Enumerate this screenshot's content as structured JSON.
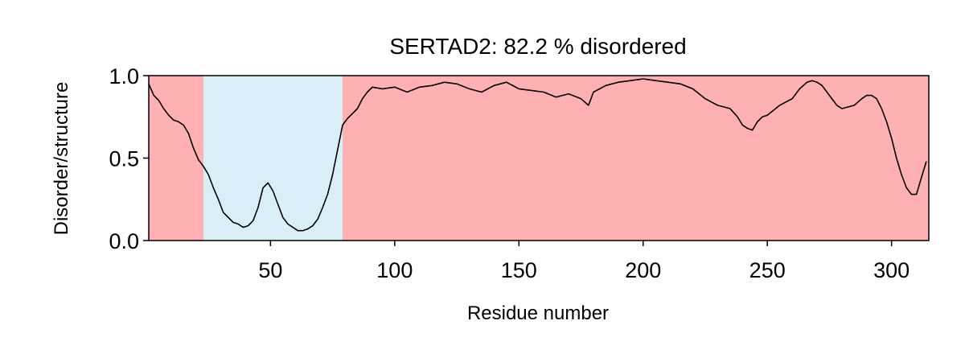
{
  "chart_data": {
    "type": "line",
    "title": "SERTAD2: 82.2 % disordered",
    "xlabel": "Residue number",
    "ylabel": "Disorder/structure",
    "xlim": [
      1,
      315
    ],
    "ylim": [
      0,
      1
    ],
    "xticks": [
      50,
      100,
      150,
      200,
      250,
      300
    ],
    "xtick_labels": [
      "50",
      "100",
      "150",
      "200",
      "250",
      "300"
    ],
    "yticks": [
      0,
      0.5,
      1
    ],
    "ytick_labels": [
      "0.0",
      "0.5",
      "1.0"
    ],
    "grid": false,
    "regions": [
      {
        "start": 1,
        "end": 23,
        "type": "disordered",
        "color": "#ffb0b2"
      },
      {
        "start": 23,
        "end": 79,
        "type": "structured",
        "color": "#d9eef7"
      },
      {
        "start": 79,
        "end": 315,
        "type": "disordered",
        "color": "#ffb0b2"
      }
    ],
    "series": [
      {
        "color": "#000000",
        "x": [
          1,
          3,
          5,
          7,
          9,
          11,
          13,
          15,
          17,
          19,
          21,
          23,
          25,
          27,
          29,
          31,
          33,
          35,
          37,
          39,
          41,
          43,
          45,
          47,
          49,
          51,
          53,
          55,
          57,
          59,
          61,
          63,
          65,
          67,
          69,
          71,
          73,
          75,
          77,
          79,
          81,
          83,
          85,
          87,
          89,
          91,
          95,
          100,
          105,
          110,
          115,
          120,
          125,
          130,
          135,
          140,
          145,
          150,
          155,
          160,
          165,
          170,
          175,
          178,
          180,
          185,
          190,
          195,
          200,
          205,
          210,
          215,
          220,
          225,
          230,
          235,
          238,
          240,
          242,
          244,
          246,
          248,
          250,
          255,
          260,
          263,
          266,
          268,
          270,
          272,
          275,
          278,
          280,
          285,
          288,
          290,
          292,
          294,
          296,
          298,
          300,
          302,
          304,
          306,
          308,
          310,
          312,
          314
        ],
        "y": [
          0.95,
          0.88,
          0.85,
          0.8,
          0.76,
          0.73,
          0.72,
          0.7,
          0.65,
          0.56,
          0.49,
          0.45,
          0.4,
          0.32,
          0.25,
          0.17,
          0.14,
          0.11,
          0.1,
          0.08,
          0.09,
          0.12,
          0.2,
          0.32,
          0.35,
          0.3,
          0.22,
          0.14,
          0.1,
          0.08,
          0.06,
          0.06,
          0.07,
          0.09,
          0.13,
          0.2,
          0.28,
          0.4,
          0.55,
          0.7,
          0.74,
          0.77,
          0.8,
          0.86,
          0.9,
          0.93,
          0.92,
          0.93,
          0.9,
          0.93,
          0.94,
          0.96,
          0.95,
          0.92,
          0.9,
          0.94,
          0.96,
          0.92,
          0.91,
          0.9,
          0.87,
          0.89,
          0.86,
          0.82,
          0.9,
          0.94,
          0.96,
          0.97,
          0.98,
          0.97,
          0.96,
          0.95,
          0.92,
          0.86,
          0.82,
          0.8,
          0.75,
          0.7,
          0.68,
          0.67,
          0.72,
          0.75,
          0.76,
          0.82,
          0.86,
          0.92,
          0.96,
          0.97,
          0.96,
          0.94,
          0.88,
          0.82,
          0.8,
          0.82,
          0.86,
          0.88,
          0.88,
          0.86,
          0.8,
          0.72,
          0.62,
          0.5,
          0.4,
          0.32,
          0.28,
          0.28,
          0.38,
          0.48
        ]
      }
    ]
  }
}
